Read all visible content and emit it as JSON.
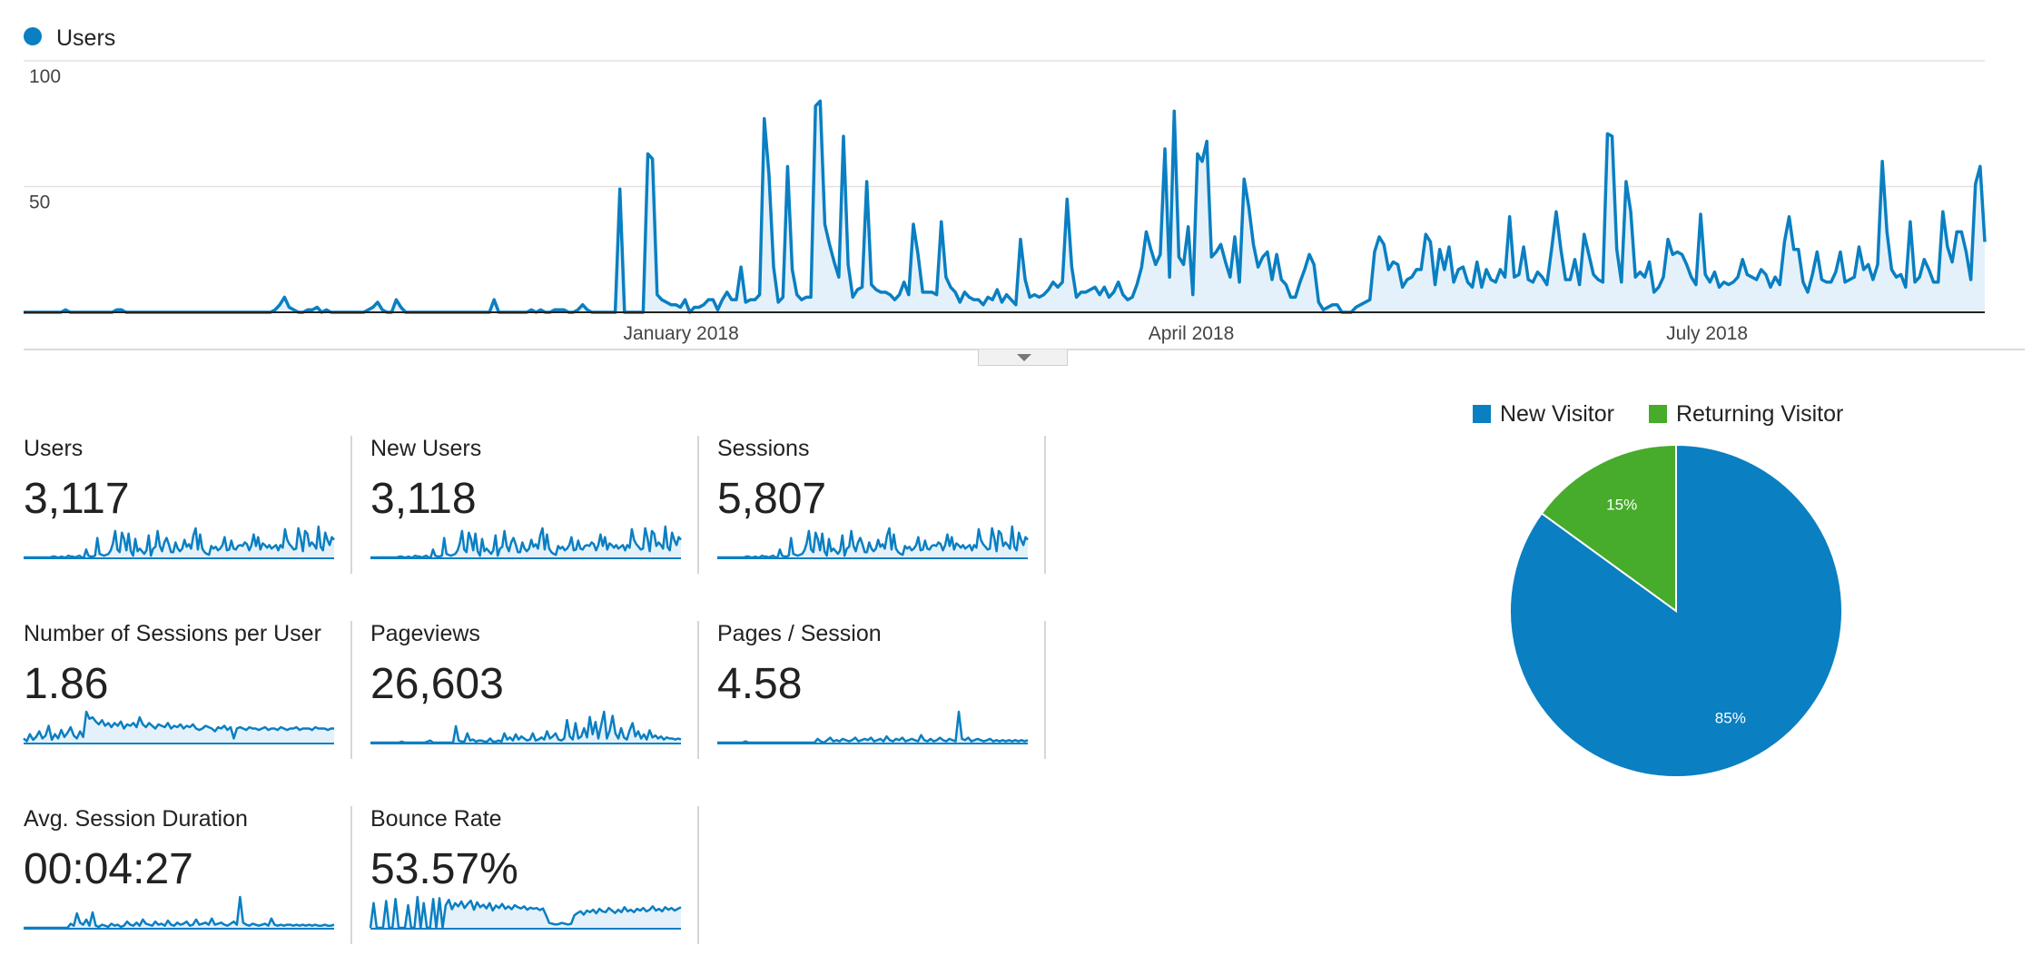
{
  "chart_data": {
    "type": "area",
    "legend": [
      {
        "name": "Users",
        "color": "#0a7fc2"
      }
    ],
    "y_ticks": [
      "100",
      "50"
    ],
    "ylim": [
      0,
      100
    ],
    "x_ticks": [
      "January 2018",
      "April 2018",
      "July 2018"
    ],
    "x_tick_dates": [
      "2018-01-01",
      "2018-04-01",
      "2018-07-01"
    ],
    "x_start": "2017-09-07",
    "x_end": "2018-08-19",
    "series": [
      {
        "name": "Users",
        "color": "#0a7fc2",
        "values": [
          0,
          0,
          0,
          0,
          0,
          0,
          0,
          0,
          0,
          1,
          0,
          0,
          0,
          0,
          0,
          0,
          0,
          0,
          0,
          0,
          1,
          1,
          0,
          0,
          0,
          0,
          0,
          0,
          0,
          0,
          0,
          0,
          0,
          0,
          0,
          0,
          0,
          0,
          0,
          0,
          0,
          0,
          0,
          0,
          0,
          0,
          0,
          0,
          0,
          0,
          0,
          0,
          0,
          0,
          1,
          3,
          6,
          2,
          1,
          0,
          0,
          1,
          1,
          2,
          0,
          1,
          0,
          0,
          0,
          0,
          0,
          0,
          0,
          0,
          1,
          2,
          4,
          1,
          0,
          0,
          5,
          2,
          0,
          0,
          0,
          0,
          0,
          0,
          0,
          0,
          0,
          0,
          0,
          0,
          0,
          0,
          0,
          0,
          0,
          0,
          0,
          5,
          0,
          0,
          0,
          0,
          0,
          0,
          0,
          1,
          0,
          1,
          0,
          0,
          1,
          1,
          1,
          0,
          0,
          1,
          3,
          1,
          0,
          0,
          0,
          0,
          0,
          0,
          49,
          0,
          0,
          0,
          0,
          0,
          63,
          61,
          7,
          5,
          4,
          3,
          3,
          2,
          5,
          0,
          2,
          2,
          3,
          5,
          5,
          1,
          5,
          8,
          5,
          5,
          18,
          4,
          5,
          5,
          7,
          77,
          55,
          18,
          4,
          6,
          58,
          17,
          7,
          5,
          6,
          6,
          82,
          84,
          35,
          27,
          20,
          14,
          70,
          19,
          6,
          9,
          10,
          52,
          11,
          9,
          8,
          8,
          7,
          5,
          7,
          12,
          7,
          35,
          23,
          8,
          8,
          8,
          7,
          36,
          14,
          10,
          8,
          4,
          8,
          6,
          5,
          5,
          3,
          6,
          5,
          9,
          4,
          7,
          5,
          3,
          29,
          13,
          6,
          7,
          6,
          7,
          9,
          12,
          10,
          12,
          45,
          18,
          6,
          8,
          8,
          9,
          10,
          7,
          10,
          6,
          8,
          12,
          7,
          5,
          6,
          11,
          18,
          32,
          25,
          19,
          23,
          65,
          14,
          80,
          22,
          19,
          34,
          7,
          63,
          60,
          68,
          22,
          24,
          27,
          20,
          14,
          30,
          12,
          53,
          42,
          27,
          18,
          22,
          24,
          13,
          23,
          13,
          11,
          6,
          6,
          12,
          17,
          23,
          19,
          4,
          1,
          2,
          3,
          3,
          0,
          0,
          0,
          2,
          3,
          4,
          5,
          24,
          30,
          27,
          17,
          20,
          19,
          10,
          13,
          14,
          17,
          17,
          31,
          28,
          11,
          25,
          17,
          26,
          12,
          17,
          18,
          12,
          10,
          20,
          10,
          17,
          13,
          12,
          17,
          14,
          38,
          14,
          15,
          26,
          13,
          12,
          16,
          14,
          11,
          25,
          40,
          25,
          13,
          13,
          21,
          11,
          31,
          23,
          15,
          13,
          12,
          71,
          70,
          25,
          12,
          52,
          40,
          14,
          16,
          14,
          20,
          8,
          10,
          14,
          29,
          23,
          24,
          23,
          19,
          14,
          11,
          39,
          15,
          12,
          16,
          10,
          12,
          11,
          12,
          14,
          21,
          15,
          14,
          13,
          17,
          15,
          10,
          14,
          11,
          28,
          38,
          25,
          25,
          12,
          8,
          15,
          24,
          13,
          12,
          12,
          16,
          24,
          12,
          13,
          14,
          26,
          17,
          19,
          13,
          19,
          60,
          32,
          17,
          14,
          15,
          10,
          36,
          12,
          14,
          21,
          17,
          12,
          12,
          40,
          26,
          20,
          32,
          32,
          24,
          13,
          51,
          58,
          28
        ]
      }
    ]
  },
  "metrics": [
    {
      "label": "Users",
      "value": "3,117",
      "spark": [
        0,
        0,
        0,
        0,
        0,
        0,
        0,
        0,
        0,
        0,
        0,
        0,
        0,
        1,
        1,
        0,
        0,
        1,
        0,
        0,
        2,
        1,
        1,
        0,
        1,
        2,
        0,
        0,
        9,
        2,
        1,
        1,
        2,
        22,
        4,
        3,
        2,
        3,
        4,
        8,
        16,
        30,
        9,
        6,
        28,
        21,
        8,
        27,
        7,
        2,
        21,
        7,
        10,
        7,
        4,
        8,
        25,
        2,
        10,
        12,
        30,
        13,
        7,
        17,
        22,
        15,
        6,
        6,
        17,
        10,
        7,
        10,
        20,
        12,
        15,
        10,
        25,
        33,
        9,
        26,
        10,
        6,
        4,
        3,
        13,
        10,
        12,
        8,
        10,
        14,
        23,
        8,
        9,
        19,
        10,
        9,
        13,
        14,
        13,
        17,
        15,
        8,
        14,
        26,
        13,
        23,
        9,
        16,
        14,
        11,
        14,
        10,
        12,
        14,
        8,
        14,
        11,
        32,
        20,
        15,
        12,
        9,
        10,
        33,
        22,
        7,
        30,
        27,
        13,
        17,
        14,
        10,
        35,
        12,
        8,
        28,
        20,
        14,
        23,
        20
      ]
    },
    {
      "label": "New Users",
      "value": "3,118",
      "spark": [
        0,
        0,
        0,
        0,
        0,
        0,
        0,
        0,
        0,
        0,
        0,
        0,
        0,
        1,
        1,
        0,
        0,
        1,
        0,
        0,
        2,
        1,
        1,
        0,
        1,
        2,
        0,
        0,
        9,
        2,
        1,
        1,
        2,
        22,
        4,
        3,
        2,
        3,
        4,
        8,
        16,
        30,
        9,
        6,
        28,
        21,
        8,
        27,
        7,
        2,
        21,
        7,
        10,
        7,
        4,
        8,
        25,
        2,
        10,
        12,
        30,
        13,
        7,
        17,
        22,
        15,
        6,
        6,
        17,
        10,
        7,
        10,
        20,
        12,
        15,
        10,
        25,
        33,
        9,
        26,
        10,
        6,
        4,
        3,
        13,
        10,
        12,
        8,
        10,
        14,
        23,
        8,
        9,
        19,
        10,
        9,
        13,
        14,
        13,
        17,
        15,
        8,
        14,
        26,
        13,
        23,
        9,
        16,
        14,
        11,
        14,
        10,
        12,
        14,
        8,
        14,
        11,
        32,
        20,
        15,
        12,
        9,
        10,
        33,
        22,
        7,
        30,
        27,
        13,
        17,
        14,
        10,
        35,
        12,
        8,
        28,
        20,
        14,
        23,
        20
      ]
    },
    {
      "label": "Sessions",
      "value": "5,807",
      "spark": [
        0,
        0,
        0,
        0,
        0,
        0,
        0,
        0,
        0,
        0,
        0,
        0,
        0,
        1,
        1,
        0,
        0,
        1,
        0,
        0,
        2,
        1,
        1,
        0,
        1,
        2,
        0,
        0,
        9,
        2,
        1,
        1,
        2,
        22,
        4,
        3,
        2,
        3,
        4,
        8,
        16,
        30,
        9,
        6,
        28,
        21,
        8,
        27,
        7,
        2,
        21,
        7,
        10,
        7,
        4,
        8,
        25,
        2,
        10,
        12,
        30,
        13,
        7,
        17,
        22,
        15,
        6,
        6,
        17,
        10,
        7,
        10,
        20,
        12,
        15,
        10,
        25,
        33,
        9,
        26,
        10,
        6,
        4,
        3,
        13,
        10,
        12,
        8,
        10,
        14,
        23,
        8,
        9,
        19,
        10,
        9,
        13,
        14,
        13,
        17,
        15,
        8,
        14,
        26,
        13,
        23,
        9,
        16,
        14,
        11,
        14,
        10,
        12,
        14,
        8,
        14,
        11,
        32,
        20,
        15,
        12,
        9,
        10,
        33,
        22,
        7,
        30,
        27,
        13,
        17,
        14,
        10,
        35,
        12,
        8,
        28,
        20,
        14,
        23,
        20
      ]
    },
    {
      "label": "Number of Sessions per User",
      "value": "1.86",
      "spark": [
        3,
        1,
        6,
        2,
        4,
        8,
        3,
        5,
        12,
        2,
        6,
        3,
        9,
        4,
        7,
        11,
        5,
        3,
        8,
        4,
        22,
        17,
        18,
        15,
        13,
        16,
        12,
        14,
        11,
        14,
        12,
        15,
        10,
        13,
        12,
        14,
        11,
        18,
        13,
        11,
        14,
        12,
        10,
        13,
        12,
        11,
        14,
        10,
        12,
        11,
        13,
        10,
        12,
        11,
        13,
        10,
        9,
        10,
        12,
        11,
        10,
        8,
        11,
        10,
        12,
        9,
        11,
        3,
        10,
        11,
        10,
        9,
        11,
        10,
        10,
        9,
        10,
        11,
        9,
        10,
        10,
        9,
        11,
        10,
        9,
        10,
        10,
        11,
        9,
        10,
        10,
        10,
        9,
        11,
        10,
        10,
        10,
        9,
        10,
        10
      ]
    },
    {
      "label": "Pageviews",
      "value": "26,603",
      "spark": [
        0,
        0,
        0,
        0,
        0,
        0,
        0,
        0,
        0,
        0,
        0,
        1,
        0,
        0,
        0,
        0,
        0,
        0,
        0,
        0,
        1,
        2,
        0,
        0,
        0,
        0,
        0,
        0,
        0,
        0,
        16,
        2,
        1,
        1,
        9,
        2,
        3,
        1,
        2,
        2,
        1,
        1,
        4,
        1,
        1,
        2,
        1,
        9,
        3,
        5,
        2,
        8,
        3,
        6,
        4,
        2,
        3,
        9,
        2,
        3,
        5,
        3,
        11,
        4,
        6,
        9,
        3,
        2,
        4,
        22,
        6,
        3,
        19,
        4,
        6,
        14,
        5,
        25,
        8,
        20,
        4,
        17,
        30,
        4,
        12,
        26,
        9,
        4,
        14,
        5,
        3,
        12,
        19,
        6,
        11,
        4,
        8,
        3,
        12,
        5,
        7,
        4,
        6,
        3,
        5,
        4,
        4,
        3,
        4,
        3
      ]
    },
    {
      "label": "Pages / Session",
      "value": "4.58",
      "spark": [
        0,
        0,
        0,
        0,
        0,
        0,
        0,
        0,
        0,
        1,
        0,
        0,
        0,
        0,
        0,
        0,
        0,
        0,
        0,
        0,
        0,
        0,
        0,
        0,
        0,
        0,
        0,
        0,
        0,
        0,
        0,
        0,
        3,
        1,
        0,
        2,
        4,
        1,
        2,
        1,
        3,
        2,
        1,
        2,
        4,
        1,
        2,
        3,
        2,
        4,
        1,
        2,
        3,
        1,
        5,
        2,
        1,
        3,
        2,
        4,
        1,
        2,
        3,
        2,
        1,
        6,
        2,
        1,
        3,
        1,
        2,
        4,
        2,
        1,
        3,
        2,
        1,
        25,
        3,
        2,
        4,
        1,
        2,
        3,
        2,
        1,
        2,
        3,
        1,
        2,
        1,
        2,
        1,
        2,
        1,
        2,
        1,
        2,
        1,
        2
      ]
    },
    {
      "label": "Avg. Session Duration",
      "value": "00:04:27",
      "spark": [
        0,
        0,
        0,
        0,
        0,
        0,
        0,
        0,
        0,
        0,
        0,
        0,
        0,
        0,
        0,
        4,
        2,
        14,
        5,
        3,
        8,
        2,
        15,
        2,
        1,
        3,
        2,
        1,
        4,
        2,
        3,
        1,
        2,
        6,
        3,
        2,
        5,
        2,
        8,
        4,
        3,
        2,
        6,
        3,
        4,
        2,
        7,
        3,
        2,
        5,
        3,
        4,
        6,
        2,
        3,
        8,
        3,
        4,
        5,
        3,
        9,
        3,
        4,
        5,
        3,
        2,
        4,
        6,
        3,
        30,
        5,
        3,
        2,
        4,
        3,
        2,
        3,
        4,
        2,
        9,
        3,
        2,
        3,
        2,
        3,
        3,
        2,
        3,
        2,
        3,
        2,
        3,
        2,
        3,
        2,
        2,
        3,
        2,
        2,
        3
      ]
    },
    {
      "label": "Bounce Rate",
      "value": "53.57%",
      "spark": [
        0,
        0,
        0,
        0,
        0,
        0,
        0,
        0,
        0,
        0,
        0,
        0,
        0,
        0,
        0,
        0,
        0,
        0,
        0,
        0,
        0,
        0,
        0,
        0,
        0,
        0,
        0,
        0,
        0,
        0,
        0,
        0,
        0,
        0,
        0,
        0,
        0,
        0,
        0,
        0,
        0,
        0,
        0,
        0,
        0,
        0,
        0,
        0,
        0,
        0,
        0,
        0,
        0,
        0,
        0,
        0,
        0,
        0,
        0,
        0,
        0,
        0,
        0,
        0,
        0,
        0,
        0,
        0,
        0,
        0,
        0,
        0,
        0,
        0,
        0,
        0,
        0,
        0,
        0,
        0,
        0,
        0,
        0,
        0,
        0,
        0,
        0,
        0,
        0,
        0,
        0,
        0,
        0,
        0,
        0,
        0,
        0,
        0,
        0,
        0
      ]
    }
  ],
  "bounce_spark": [
    0,
    60,
    0,
    0,
    0,
    65,
    0,
    0,
    70,
    0,
    0,
    0,
    55,
    0,
    0,
    75,
    0,
    60,
    0,
    0,
    70,
    0,
    72,
    0,
    55,
    68,
    45,
    60,
    52,
    64,
    48,
    58,
    66,
    44,
    62,
    50,
    56,
    47,
    60,
    42,
    54,
    48,
    58,
    46,
    52,
    45,
    55,
    50,
    47,
    52,
    44,
    49,
    46,
    48,
    43,
    47,
    30,
    12,
    10,
    8,
    9,
    12,
    10,
    8,
    10,
    30,
    36,
    40,
    32,
    42,
    38,
    44,
    35,
    46,
    40,
    38,
    48,
    42,
    36,
    44,
    38,
    50,
    40,
    44,
    38,
    46,
    42,
    48,
    40,
    44,
    52,
    42,
    46,
    40,
    50,
    44,
    48,
    42,
    46,
    50
  ],
  "pie": {
    "legend": [
      {
        "name": "New Visitor",
        "color": "#0a7fc2"
      },
      {
        "name": "Returning Visitor",
        "color": "#47ab2c"
      }
    ],
    "slices": [
      {
        "name": "New Visitor",
        "value": 85,
        "label": "85%",
        "color": "#0a7fc2"
      },
      {
        "name": "Returning Visitor",
        "value": 15,
        "label": "15%",
        "color": "#47ab2c"
      }
    ]
  }
}
